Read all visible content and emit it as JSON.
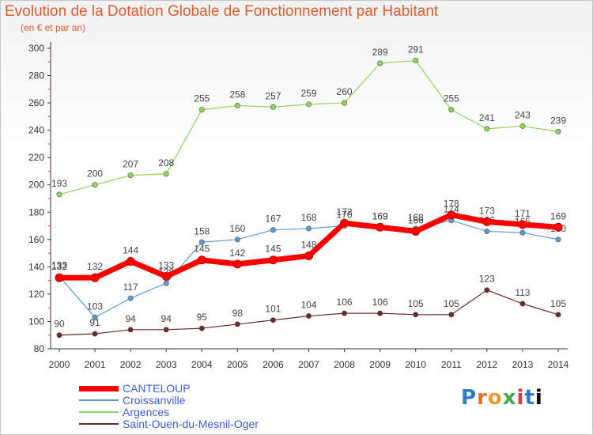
{
  "title": "Evolution de la Dotation Globale de Fonctionnement par Habitant",
  "subtitle": "(en € et par an)",
  "logo": [
    "P",
    "r",
    "o",
    "x",
    "i",
    "t",
    "i"
  ],
  "chart_data": {
    "type": "line",
    "x": [
      "2000",
      "2001",
      "2002",
      "2003",
      "2004",
      "2005",
      "2006",
      "2007",
      "2008",
      "2009",
      "2010",
      "2011",
      "2012",
      "2013",
      "2014"
    ],
    "ylim": [
      80,
      300
    ],
    "yticks": [
      80,
      100,
      120,
      140,
      160,
      180,
      200,
      220,
      240,
      260,
      280,
      300
    ],
    "grid": false,
    "legend_position": "bottom-left",
    "series": [
      {
        "name": "Saint-Ouen-du-Mesnil-Oger",
        "color": "#6b2a2a",
        "width": 1.2,
        "values": [
          90,
          91,
          94,
          94,
          95,
          98,
          101,
          104,
          106,
          106,
          105,
          105,
          123,
          113,
          105
        ]
      },
      {
        "name": "Argences",
        "color": "#8fd65a",
        "width": 1.2,
        "values": [
          193,
          200,
          207,
          208,
          255,
          258,
          257,
          259,
          260,
          289,
          291,
          255,
          241,
          243,
          239
        ]
      },
      {
        "name": "Croissanville",
        "color": "#5a9bd5",
        "width": 1.2,
        "values": [
          133,
          103,
          117,
          128,
          158,
          160,
          167,
          168,
          170,
          169,
          168,
          174,
          166,
          165,
          160
        ]
      },
      {
        "name": "CANTELOUP",
        "color": "#ff0000",
        "width": 7,
        "values": [
          132,
          132,
          144,
          133,
          145,
          142,
          145,
          148,
          172,
          169,
          166,
          178,
          173,
          171,
          169
        ]
      }
    ]
  }
}
